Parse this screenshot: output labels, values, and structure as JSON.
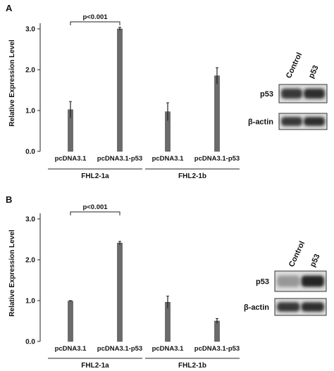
{
  "chart_data": [
    {
      "type": "bar",
      "panel_label": "A",
      "ylabel": "Relative Expression Level",
      "ylim": [
        0,
        3.0
      ],
      "yticks": [
        "0.0",
        "1.0",
        "2.0",
        "3.0"
      ],
      "categories": [
        "pcDNA3.1",
        "pcDNA3.1-p53",
        "pcDNA3.1",
        "pcDNA3.1-p53"
      ],
      "groups": [
        "FHL2-1a",
        "FHL2-1b"
      ],
      "values": [
        1.02,
        3.0,
        0.97,
        1.85
      ],
      "errors": [
        0.2,
        0.04,
        0.22,
        0.2
      ],
      "annotation": "p<0.001",
      "annotation_span": [
        0,
        1
      ],
      "bar_color": "#6b6b6b",
      "grid": false,
      "blot": {
        "lanes": [
          "Control",
          "p53"
        ],
        "rows": [
          "p53",
          "β-actin"
        ]
      }
    },
    {
      "type": "bar",
      "panel_label": "B",
      "ylabel": "Relative Expression Level",
      "ylim": [
        0,
        3.0
      ],
      "yticks": [
        "0.0",
        "1.0",
        "2.0",
        "3.0"
      ],
      "categories": [
        "pcDNA3.1",
        "pcDNA3.1-p53",
        "pcDNA3.1",
        "pcDNA3.1-p53"
      ],
      "groups": [
        "FHL2-1a",
        "FHL2-1b"
      ],
      "values": [
        0.99,
        2.41,
        0.96,
        0.5
      ],
      "errors": [
        0.01,
        0.04,
        0.15,
        0.06
      ],
      "annotation": "p<0.001",
      "annotation_span": [
        0,
        1
      ],
      "bar_color": "#6b6b6b",
      "grid": false,
      "blot": {
        "lanes": [
          "Control",
          "p53"
        ],
        "rows": [
          "p53",
          "β-actin"
        ]
      }
    }
  ]
}
